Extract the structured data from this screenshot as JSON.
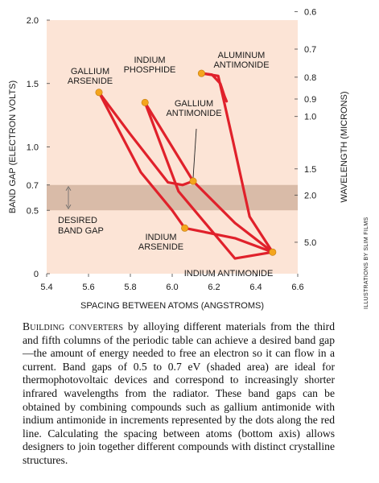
{
  "chart_data": {
    "type": "line",
    "xlabel": "SPACING BETWEEN ATOMS (ANGSTROMS)",
    "ylabel_left": "BAND GAP (ELECTRON VOLTS)",
    "ylabel_right": "WAVELENGTH (MICRONS)",
    "xlim": [
      5.4,
      6.6
    ],
    "ylim": [
      0,
      2.0
    ],
    "x_ticks": [
      "5.4",
      "5.6",
      "5.8",
      "6.0",
      "6.2",
      "6.4",
      "6.6"
    ],
    "y_ticks_left": [
      "2.0",
      "1.5",
      "1.0",
      "0.7",
      "0.5",
      "0"
    ],
    "y_ticks_right": [
      "0.6",
      "0.7",
      "0.8",
      "0.9",
      "1.0",
      "1.5",
      "2.0",
      "5.0"
    ],
    "shaded_band": {
      "y_range": [
        0.5,
        0.7
      ],
      "label": "DESIRED\nBAND GAP"
    },
    "points": [
      {
        "name": "GALLIUM\nARSENIDE",
        "x": 5.65,
        "y": 1.43
      },
      {
        "name": "INDIUM\nPHOSPHIDE",
        "x": 5.87,
        "y": 1.35
      },
      {
        "name": "ALUMINUM\nANTIMONIDE",
        "x": 6.14,
        "y": 1.58
      },
      {
        "name": "GALLIUM\nANTIMONIDE",
        "x": 6.1,
        "y": 0.73
      },
      {
        "name": "INDIUM\nARSENIDE",
        "x": 6.06,
        "y": 0.36
      },
      {
        "name": "INDIUM ANTIMONIDE",
        "x": 6.48,
        "y": 0.17
      }
    ],
    "series": [
      {
        "x": [
          5.65,
          5.8,
          5.98,
          6.05,
          6.1
        ],
        "y": [
          1.43,
          1.1,
          0.72,
          0.7,
          0.73
        ]
      },
      {
        "x": [
          5.65,
          5.85,
          6.0,
          6.06
        ],
        "y": [
          1.43,
          0.8,
          0.5,
          0.36
        ]
      },
      {
        "x": [
          5.87,
          6.0,
          6.1
        ],
        "y": [
          1.35,
          1.0,
          0.73
        ]
      },
      {
        "x": [
          5.87,
          6.03,
          6.3,
          6.48
        ],
        "y": [
          1.35,
          0.65,
          0.12,
          0.17
        ]
      },
      {
        "x": [
          6.14,
          6.22,
          6.29,
          6.37,
          6.48
        ],
        "y": [
          1.58,
          1.56,
          1.05,
          0.45,
          0.17
        ]
      },
      {
        "x": [
          6.14,
          6.19,
          6.23,
          6.25,
          6.26
        ],
        "y": [
          1.58,
          1.57,
          1.5,
          1.4,
          1.36
        ]
      },
      {
        "x": [
          6.1,
          6.3,
          6.48
        ],
        "y": [
          0.73,
          0.4,
          0.17
        ]
      },
      {
        "x": [
          6.06,
          6.3,
          6.48
        ],
        "y": [
          0.36,
          0.28,
          0.17
        ]
      }
    ],
    "colors": {
      "background": "#fce4d6",
      "band": "#d9bba8",
      "curve": "#e0212b",
      "dot": "#f4a51d"
    }
  },
  "caption": {
    "lead": "Building converters",
    "body": " by alloying different materials from the third and fifth columns of the periodic table can achieve a desired band gap—the amount of energy needed to free an electron so it can flow in a current. Band gaps of 0.5 to 0.7 eV (shaded area) are ideal for thermophotovoltaic devices and correspond to increasingly shorter infrared wavelengths from the radiator. These band gaps can be obtained by combining compounds such as gallium antimonide with indium antimonide in increments represented by the dots along the red line. Calculating the spacing between atoms (bottom axis) allows designers to join together different compounds with distinct crystalline structures."
  },
  "credit": "ILLUSTRATIONS BY SLIM FILMS"
}
